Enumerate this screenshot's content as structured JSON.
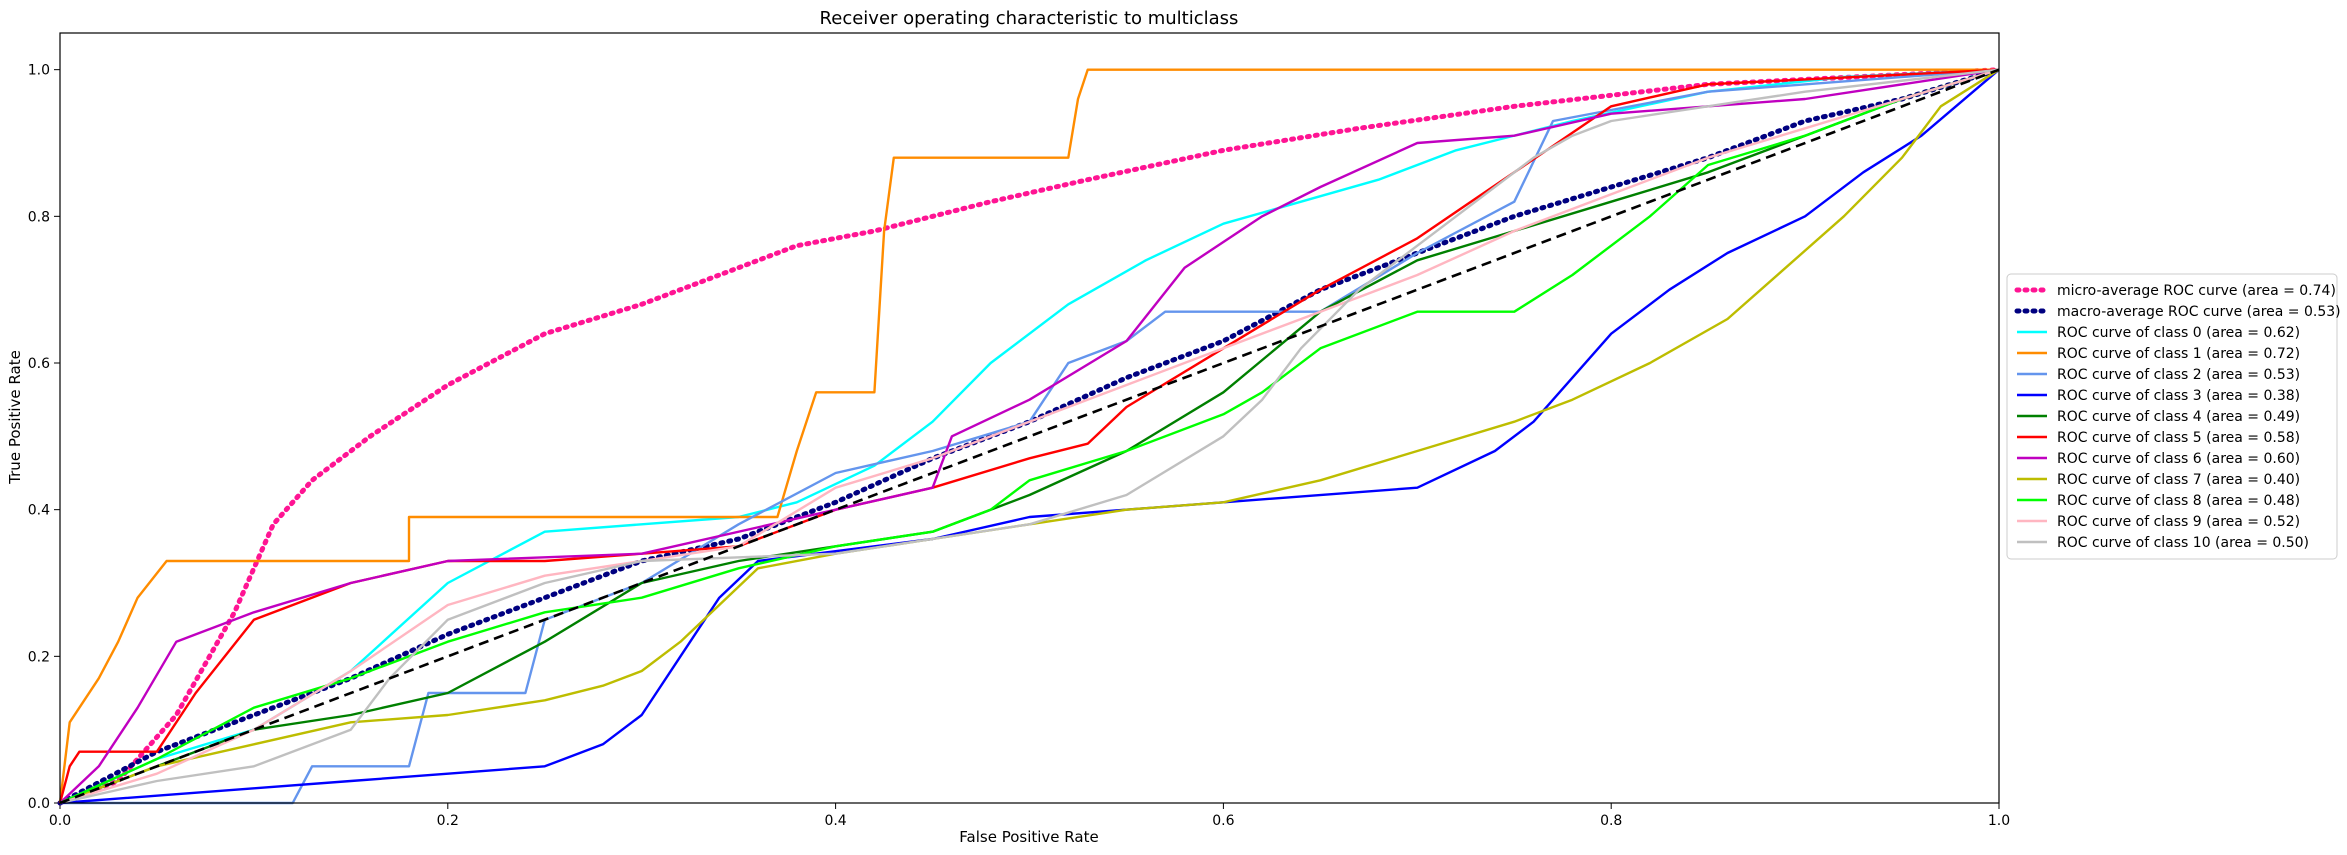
{
  "chart_data": {
    "type": "line",
    "title": "Receiver operating characteristic to multiclass",
    "xlabel": "False Positive Rate",
    "ylabel": "True Positive Rate",
    "xlim": [
      0.0,
      1.0
    ],
    "ylim": [
      0.0,
      1.05
    ],
    "xticks": [
      "0.0",
      "0.2",
      "0.4",
      "0.6",
      "0.8",
      "1.0"
    ],
    "yticks": [
      "0.0",
      "0.2",
      "0.4",
      "0.6",
      "0.8",
      "1.0"
    ],
    "grid": false,
    "legend_position": "right",
    "series": [
      {
        "name": "micro-average ROC curve (area = 0.74)",
        "color": "#ff1493",
        "style": "dotted",
        "points": [
          [
            0,
            0
          ],
          [
            0.03,
            0.03
          ],
          [
            0.06,
            0.12
          ],
          [
            0.09,
            0.26
          ],
          [
            0.11,
            0.38
          ],
          [
            0.13,
            0.44
          ],
          [
            0.16,
            0.5
          ],
          [
            0.2,
            0.57
          ],
          [
            0.25,
            0.64
          ],
          [
            0.3,
            0.68
          ],
          [
            0.34,
            0.72
          ],
          [
            0.38,
            0.76
          ],
          [
            0.42,
            0.78
          ],
          [
            0.48,
            0.82
          ],
          [
            0.53,
            0.85
          ],
          [
            0.6,
            0.89
          ],
          [
            0.67,
            0.92
          ],
          [
            0.75,
            0.95
          ],
          [
            0.85,
            0.98
          ],
          [
            1.0,
            1.0
          ]
        ]
      },
      {
        "name": "macro-average ROC curve (area = 0.53)",
        "color": "#000080",
        "style": "dotted",
        "points": [
          [
            0,
            0
          ],
          [
            0.05,
            0.07
          ],
          [
            0.1,
            0.12
          ],
          [
            0.15,
            0.17
          ],
          [
            0.2,
            0.23
          ],
          [
            0.25,
            0.28
          ],
          [
            0.3,
            0.33
          ],
          [
            0.35,
            0.36
          ],
          [
            0.4,
            0.41
          ],
          [
            0.45,
            0.47
          ],
          [
            0.5,
            0.52
          ],
          [
            0.55,
            0.58
          ],
          [
            0.6,
            0.63
          ],
          [
            0.65,
            0.7
          ],
          [
            0.7,
            0.75
          ],
          [
            0.75,
            0.8
          ],
          [
            0.8,
            0.84
          ],
          [
            0.85,
            0.88
          ],
          [
            0.9,
            0.93
          ],
          [
            0.95,
            0.96
          ],
          [
            1.0,
            1.0
          ]
        ]
      },
      {
        "name": "ROC curve of class 0 (area = 0.62)",
        "color": "#00ffff",
        "style": "solid",
        "points": [
          [
            0,
            0
          ],
          [
            0.05,
            0.06
          ],
          [
            0.1,
            0.1
          ],
          [
            0.15,
            0.18
          ],
          [
            0.2,
            0.3
          ],
          [
            0.25,
            0.37
          ],
          [
            0.3,
            0.38
          ],
          [
            0.35,
            0.39
          ],
          [
            0.38,
            0.41
          ],
          [
            0.42,
            0.46
          ],
          [
            0.45,
            0.52
          ],
          [
            0.48,
            0.6
          ],
          [
            0.52,
            0.68
          ],
          [
            0.56,
            0.74
          ],
          [
            0.6,
            0.79
          ],
          [
            0.64,
            0.82
          ],
          [
            0.68,
            0.85
          ],
          [
            0.72,
            0.89
          ],
          [
            0.78,
            0.93
          ],
          [
            0.85,
            0.97
          ],
          [
            0.92,
            0.99
          ],
          [
            1.0,
            1.0
          ]
        ]
      },
      {
        "name": "ROC curve of class 1 (area = 0.72)",
        "color": "#ff8c00",
        "style": "solid",
        "points": [
          [
            0,
            0
          ],
          [
            0.005,
            0.11
          ],
          [
            0.02,
            0.17
          ],
          [
            0.03,
            0.22
          ],
          [
            0.04,
            0.28
          ],
          [
            0.055,
            0.33
          ],
          [
            0.18,
            0.33
          ],
          [
            0.18,
            0.39
          ],
          [
            0.37,
            0.39
          ],
          [
            0.38,
            0.48
          ],
          [
            0.39,
            0.56
          ],
          [
            0.42,
            0.56
          ],
          [
            0.425,
            0.78
          ],
          [
            0.43,
            0.88
          ],
          [
            0.52,
            0.88
          ],
          [
            0.525,
            0.96
          ],
          [
            0.53,
            1.0
          ],
          [
            1.0,
            1.0
          ]
        ]
      },
      {
        "name": "ROC curve of class 2 (area = 0.53)",
        "color": "#6495ed",
        "style": "solid",
        "points": [
          [
            0,
            0
          ],
          [
            0.12,
            0.0
          ],
          [
            0.13,
            0.05
          ],
          [
            0.18,
            0.05
          ],
          [
            0.19,
            0.15
          ],
          [
            0.24,
            0.15
          ],
          [
            0.25,
            0.25
          ],
          [
            0.3,
            0.3
          ],
          [
            0.35,
            0.38
          ],
          [
            0.4,
            0.45
          ],
          [
            0.45,
            0.48
          ],
          [
            0.5,
            0.52
          ],
          [
            0.52,
            0.6
          ],
          [
            0.55,
            0.63
          ],
          [
            0.57,
            0.67
          ],
          [
            0.65,
            0.67
          ],
          [
            0.7,
            0.75
          ],
          [
            0.75,
            0.82
          ],
          [
            0.77,
            0.93
          ],
          [
            0.85,
            0.97
          ],
          [
            1.0,
            1.0
          ]
        ]
      },
      {
        "name": "ROC curve of class 3 (area = 0.38)",
        "color": "#0000ff",
        "style": "solid",
        "points": [
          [
            0,
            0
          ],
          [
            0.1,
            0.02
          ],
          [
            0.15,
            0.03
          ],
          [
            0.2,
            0.04
          ],
          [
            0.25,
            0.05
          ],
          [
            0.28,
            0.08
          ],
          [
            0.3,
            0.12
          ],
          [
            0.32,
            0.2
          ],
          [
            0.34,
            0.28
          ],
          [
            0.36,
            0.33
          ],
          [
            0.45,
            0.36
          ],
          [
            0.5,
            0.39
          ],
          [
            0.6,
            0.41
          ],
          [
            0.7,
            0.43
          ],
          [
            0.74,
            0.48
          ],
          [
            0.76,
            0.52
          ],
          [
            0.78,
            0.58
          ],
          [
            0.8,
            0.64
          ],
          [
            0.83,
            0.7
          ],
          [
            0.86,
            0.75
          ],
          [
            0.9,
            0.8
          ],
          [
            0.93,
            0.86
          ],
          [
            0.96,
            0.91
          ],
          [
            1.0,
            1.0
          ]
        ]
      },
      {
        "name": "ROC curve of class 4 (area = 0.49)",
        "color": "#008000",
        "style": "solid",
        "points": [
          [
            0,
            0
          ],
          [
            0.05,
            0.05
          ],
          [
            0.1,
            0.1
          ],
          [
            0.15,
            0.12
          ],
          [
            0.2,
            0.15
          ],
          [
            0.25,
            0.22
          ],
          [
            0.3,
            0.3
          ],
          [
            0.35,
            0.33
          ],
          [
            0.4,
            0.35
          ],
          [
            0.45,
            0.37
          ],
          [
            0.5,
            0.42
          ],
          [
            0.55,
            0.48
          ],
          [
            0.6,
            0.56
          ],
          [
            0.65,
            0.67
          ],
          [
            0.7,
            0.74
          ],
          [
            0.75,
            0.78
          ],
          [
            0.8,
            0.82
          ],
          [
            0.85,
            0.86
          ],
          [
            0.9,
            0.91
          ],
          [
            0.95,
            0.96
          ],
          [
            1.0,
            1.0
          ]
        ]
      },
      {
        "name": "ROC curve of class 5 (area = 0.58)",
        "color": "#ff0000",
        "style": "solid",
        "points": [
          [
            0,
            0
          ],
          [
            0.005,
            0.05
          ],
          [
            0.01,
            0.07
          ],
          [
            0.05,
            0.07
          ],
          [
            0.07,
            0.15
          ],
          [
            0.1,
            0.25
          ],
          [
            0.15,
            0.3
          ],
          [
            0.2,
            0.33
          ],
          [
            0.25,
            0.33
          ],
          [
            0.3,
            0.34
          ],
          [
            0.35,
            0.35
          ],
          [
            0.4,
            0.4
          ],
          [
            0.45,
            0.43
          ],
          [
            0.5,
            0.47
          ],
          [
            0.53,
            0.49
          ],
          [
            0.55,
            0.54
          ],
          [
            0.6,
            0.62
          ],
          [
            0.65,
            0.7
          ],
          [
            0.7,
            0.77
          ],
          [
            0.75,
            0.86
          ],
          [
            0.8,
            0.95
          ],
          [
            0.85,
            0.98
          ],
          [
            1.0,
            1.0
          ]
        ]
      },
      {
        "name": "ROC curve of class 6 (area = 0.60)",
        "color": "#c000c0",
        "style": "solid",
        "points": [
          [
            0,
            0
          ],
          [
            0.02,
            0.05
          ],
          [
            0.04,
            0.13
          ],
          [
            0.06,
            0.22
          ],
          [
            0.08,
            0.24
          ],
          [
            0.1,
            0.26
          ],
          [
            0.15,
            0.3
          ],
          [
            0.2,
            0.33
          ],
          [
            0.3,
            0.34
          ],
          [
            0.4,
            0.4
          ],
          [
            0.45,
            0.43
          ],
          [
            0.46,
            0.5
          ],
          [
            0.5,
            0.55
          ],
          [
            0.55,
            0.63
          ],
          [
            0.58,
            0.73
          ],
          [
            0.62,
            0.8
          ],
          [
            0.65,
            0.84
          ],
          [
            0.7,
            0.9
          ],
          [
            0.75,
            0.91
          ],
          [
            0.8,
            0.94
          ],
          [
            0.9,
            0.96
          ],
          [
            1.0,
            1.0
          ]
        ]
      },
      {
        "name": "ROC curve of class 7 (area = 0.40)",
        "color": "#bdbd00",
        "style": "solid",
        "points": [
          [
            0,
            0
          ],
          [
            0.05,
            0.05
          ],
          [
            0.1,
            0.08
          ],
          [
            0.15,
            0.11
          ],
          [
            0.2,
            0.12
          ],
          [
            0.25,
            0.14
          ],
          [
            0.28,
            0.16
          ],
          [
            0.3,
            0.18
          ],
          [
            0.32,
            0.22
          ],
          [
            0.34,
            0.27
          ],
          [
            0.36,
            0.32
          ],
          [
            0.4,
            0.34
          ],
          [
            0.45,
            0.36
          ],
          [
            0.5,
            0.38
          ],
          [
            0.55,
            0.4
          ],
          [
            0.6,
            0.41
          ],
          [
            0.65,
            0.44
          ],
          [
            0.7,
            0.48
          ],
          [
            0.75,
            0.52
          ],
          [
            0.78,
            0.55
          ],
          [
            0.82,
            0.6
          ],
          [
            0.86,
            0.66
          ],
          [
            0.89,
            0.73
          ],
          [
            0.92,
            0.8
          ],
          [
            0.95,
            0.88
          ],
          [
            0.97,
            0.95
          ],
          [
            1.0,
            1.0
          ]
        ]
      },
      {
        "name": "ROC curve of class 8 (area = 0.48)",
        "color": "#00ff00",
        "style": "solid",
        "points": [
          [
            0,
            0
          ],
          [
            0.05,
            0.06
          ],
          [
            0.1,
            0.13
          ],
          [
            0.15,
            0.17
          ],
          [
            0.2,
            0.22
          ],
          [
            0.25,
            0.26
          ],
          [
            0.3,
            0.28
          ],
          [
            0.35,
            0.32
          ],
          [
            0.4,
            0.35
          ],
          [
            0.45,
            0.37
          ],
          [
            0.48,
            0.4
          ],
          [
            0.5,
            0.44
          ],
          [
            0.55,
            0.48
          ],
          [
            0.6,
            0.53
          ],
          [
            0.62,
            0.56
          ],
          [
            0.65,
            0.62
          ],
          [
            0.7,
            0.67
          ],
          [
            0.75,
            0.67
          ],
          [
            0.78,
            0.72
          ],
          [
            0.82,
            0.8
          ],
          [
            0.85,
            0.87
          ],
          [
            0.9,
            0.91
          ],
          [
            0.95,
            0.96
          ],
          [
            1.0,
            1.0
          ]
        ]
      },
      {
        "name": "ROC curve of class 9 (area = 0.52)",
        "color": "#ffb6c1",
        "style": "solid",
        "points": [
          [
            0,
            0
          ],
          [
            0.05,
            0.04
          ],
          [
            0.1,
            0.1
          ],
          [
            0.15,
            0.18
          ],
          [
            0.2,
            0.27
          ],
          [
            0.25,
            0.31
          ],
          [
            0.3,
            0.33
          ],
          [
            0.35,
            0.35
          ],
          [
            0.4,
            0.43
          ],
          [
            0.45,
            0.47
          ],
          [
            0.5,
            0.52
          ],
          [
            0.55,
            0.57
          ],
          [
            0.6,
            0.62
          ],
          [
            0.65,
            0.67
          ],
          [
            0.7,
            0.72
          ],
          [
            0.75,
            0.78
          ],
          [
            0.8,
            0.83
          ],
          [
            0.85,
            0.88
          ],
          [
            0.9,
            0.92
          ],
          [
            0.95,
            0.96
          ],
          [
            1.0,
            1.0
          ]
        ]
      },
      {
        "name": "ROC curve of class 10 (area = 0.50)",
        "color": "#c0c0c0",
        "style": "solid",
        "points": [
          [
            0,
            0
          ],
          [
            0.05,
            0.03
          ],
          [
            0.1,
            0.05
          ],
          [
            0.15,
            0.1
          ],
          [
            0.17,
            0.17
          ],
          [
            0.2,
            0.25
          ],
          [
            0.25,
            0.3
          ],
          [
            0.3,
            0.33
          ],
          [
            0.4,
            0.34
          ],
          [
            0.45,
            0.36
          ],
          [
            0.5,
            0.38
          ],
          [
            0.55,
            0.42
          ],
          [
            0.6,
            0.5
          ],
          [
            0.62,
            0.55
          ],
          [
            0.64,
            0.62
          ],
          [
            0.67,
            0.7
          ],
          [
            0.7,
            0.76
          ],
          [
            0.73,
            0.82
          ],
          [
            0.76,
            0.88
          ],
          [
            0.78,
            0.91
          ],
          [
            0.8,
            0.93
          ],
          [
            0.85,
            0.95
          ],
          [
            0.9,
            0.97
          ],
          [
            1.0,
            1.0
          ]
        ]
      }
    ],
    "diagonal": {
      "color": "#000000",
      "style": "dashed",
      "points": [
        [
          0,
          0
        ],
        [
          1,
          1
        ]
      ]
    }
  }
}
